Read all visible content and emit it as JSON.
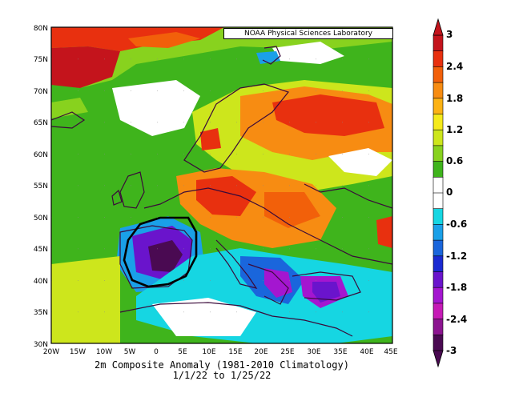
{
  "map": {
    "credit": "NOAA Physical Sciences Laboratory",
    "caption_line1": "2m    Composite Anomaly (1981-2010 Climatology)",
    "caption_line2": "1/1/22  to 1/25/22",
    "lat_labels": [
      "80N",
      "75N",
      "70N",
      "65N",
      "60N",
      "55N",
      "50N",
      "45N",
      "40N",
      "35N",
      "30N"
    ],
    "lon_labels": [
      "20W",
      "15W",
      "10W",
      "5W",
      "0",
      "5E",
      "10E",
      "15E",
      "20E",
      "25E",
      "30E",
      "35E",
      "40E",
      "45E"
    ],
    "colorbar": {
      "labels": [
        "3",
        "2.4",
        "1.8",
        "1.2",
        "0.6",
        "0",
        "-0.6",
        "-1.2",
        "-1.8",
        "-2.4",
        "-3"
      ],
      "colors": [
        "#c4141c",
        "#e8300f",
        "#f2600a",
        "#f78c12",
        "#fcb214",
        "#f5ea1a",
        "#cde61c",
        "#88d21e",
        "#3fb41c",
        "#ffffff",
        "#ffffff",
        "#16d6e2",
        "#1aa0e8",
        "#1a66dc",
        "#1a2ad2",
        "#6a14cc",
        "#a416d0",
        "#c61ab6",
        "#8c1490",
        "#4a0a52"
      ]
    },
    "palette": {
      "deep_red": "#c4141c",
      "red": "#e8300f",
      "orange": "#f2600a",
      "light_orange": "#f78c12",
      "yellow": "#f5ea1a",
      "yellow_green": "#cde61c",
      "light_green": "#88d21e",
      "green": "#3fb41c",
      "white": "#ffffff",
      "cyan": "#16d6e2",
      "light_blue": "#1aa0e8",
      "blue": "#1a66dc",
      "purple": "#6a14cc",
      "magenta": "#a416d0",
      "dark_purple": "#4a0a52",
      "coastline": "#3a0a3a"
    }
  }
}
